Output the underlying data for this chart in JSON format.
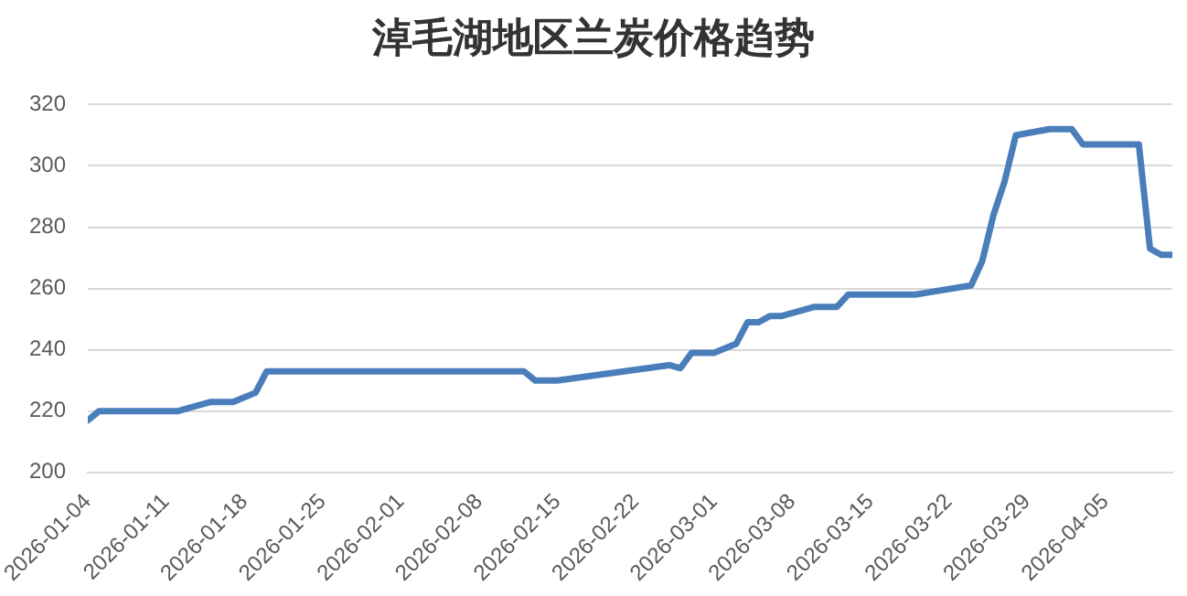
{
  "chart_data": {
    "type": "line",
    "title": "淖毛湖地区兰炭价格趋势",
    "x": [
      "2026-01-04",
      "2026-01-05",
      "2026-01-12",
      "2026-01-15",
      "2026-01-17",
      "2026-01-19",
      "2026-01-20",
      "2026-02-12",
      "2026-02-13",
      "2026-02-15",
      "2026-02-19",
      "2026-02-25",
      "2026-02-26",
      "2026-02-27",
      "2026-03-01",
      "2026-03-03",
      "2026-03-04",
      "2026-03-05",
      "2026-03-06",
      "2026-03-07",
      "2026-03-10",
      "2026-03-12",
      "2026-03-13",
      "2026-03-19",
      "2026-03-24",
      "2026-03-25",
      "2026-03-26",
      "2026-03-27",
      "2026-03-28",
      "2026-03-31",
      "2026-04-02",
      "2026-04-03",
      "2026-04-08",
      "2026-04-09",
      "2026-04-10",
      "2026-04-11"
    ],
    "series": [
      {
        "color": "#4a7ebb",
        "values": [
          217,
          220,
          220,
          223,
          223,
          226,
          233,
          233,
          230,
          230,
          232,
          235,
          234,
          239,
          239,
          242,
          249,
          249,
          251,
          251,
          254,
          254,
          258,
          258,
          261,
          269,
          284,
          295,
          310,
          312,
          312,
          307,
          307,
          273,
          271,
          271
        ]
      }
    ],
    "xlim": [
      "2026-01-04",
      "2026-04-11"
    ],
    "xticks": [
      "2026-01-04",
      "2026-01-11",
      "2026-01-18",
      "2026-01-25",
      "2026-02-01",
      "2026-02-08",
      "2026-02-15",
      "2026-02-22",
      "2026-03-01",
      "2026-03-08",
      "2026-03-15",
      "2026-03-22",
      "2026-03-29",
      "2026-04-05"
    ],
    "ylim": [
      200,
      320
    ],
    "yticks": [
      200,
      220,
      240,
      260,
      280,
      300,
      320
    ],
    "grid": "y",
    "legend": false,
    "marker": "none",
    "line_style": "solid"
  }
}
